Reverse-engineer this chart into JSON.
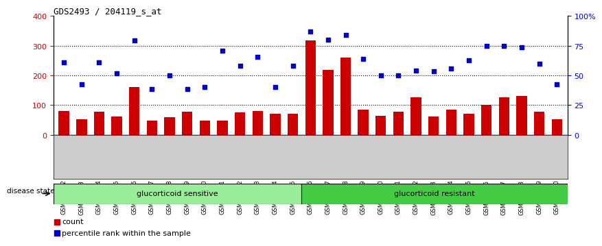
{
  "title": "GDS2493 / 204119_s_at",
  "categories": [
    "GSM135892",
    "GSM135893",
    "GSM135894",
    "GSM135945",
    "GSM135946",
    "GSM135947",
    "GSM135948",
    "GSM135949",
    "GSM135950",
    "GSM135951",
    "GSM135952",
    "GSM135953",
    "GSM135954",
    "GSM135955",
    "GSM135956",
    "GSM135957",
    "GSM135958",
    "GSM135959",
    "GSM135960",
    "GSM135961",
    "GSM135962",
    "GSM135963",
    "GSM135964",
    "GSM135965",
    "GSM135966",
    "GSM135967",
    "GSM135968",
    "GSM135969",
    "GSM135970"
  ],
  "count_values": [
    80,
    53,
    78,
    62,
    160,
    47,
    60,
    78,
    48,
    47,
    75,
    80,
    70,
    70,
    318,
    218,
    260,
    85,
    65,
    78,
    126,
    62,
    85,
    70,
    100,
    126,
    130,
    78,
    53
  ],
  "percentile_values": [
    245,
    170,
    245,
    207,
    317,
    155,
    200,
    155,
    162,
    283,
    232,
    263,
    160,
    232,
    348,
    320,
    337,
    255,
    200,
    200,
    217,
    215,
    223,
    250,
    300,
    300,
    295,
    240,
    170
  ],
  "sensitive_count": 14,
  "resistant_count": 15,
  "group_sensitive_label": "glucorticoid sensitive",
  "group_resistant_label": "glucorticoid resistant",
  "disease_state_label": "disease state",
  "bar_color": "#cc0000",
  "dot_color": "#0000cc",
  "left_ylim": [
    0,
    400
  ],
  "left_yticks": [
    0,
    100,
    200,
    300,
    400
  ],
  "right_yticks_positions": [
    0,
    100,
    200,
    300,
    400
  ],
  "right_yticklabels": [
    "0",
    "25",
    "50",
    "75",
    "100%"
  ],
  "hline_values": [
    100,
    200,
    300
  ],
  "legend_count_label": "count",
  "legend_percentile_label": "percentile rank within the sample",
  "sensitive_bg": "#99ee99",
  "resistant_bg": "#44cc44",
  "figsize": [
    8.81,
    3.54
  ]
}
